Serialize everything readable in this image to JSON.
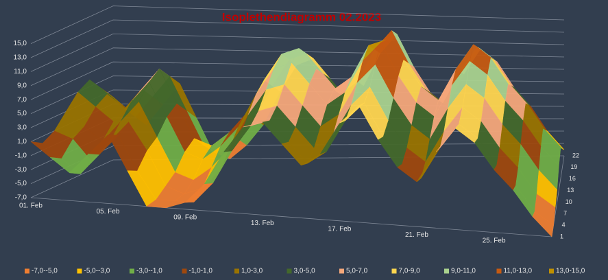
{
  "chart_data": {
    "type": "surface",
    "title": "Isoplethendiagramm 02.2023",
    "categories": [
      "01. Feb",
      null,
      null,
      null,
      "05. Feb",
      null,
      null,
      null,
      "09. Feb",
      null,
      null,
      null,
      "13. Feb",
      null,
      null,
      null,
      "17. Feb",
      null,
      null,
      null,
      "21. Feb",
      null,
      null,
      null,
      "25. Feb",
      null,
      null,
      null
    ],
    "ylim": [
      -7,
      15
    ],
    "yticks": [
      {
        "value": -7,
        "label": "-7,0"
      },
      {
        "value": -5,
        "label": "-5,0"
      },
      {
        "value": -3,
        "label": "-3,0"
      },
      {
        "value": -1,
        "label": "-1,0"
      },
      {
        "value": 1,
        "label": "1,0"
      },
      {
        "value": 3,
        "label": "3,0"
      },
      {
        "value": 5,
        "label": "5,0"
      },
      {
        "value": 7,
        "label": "7,0"
      },
      {
        "value": 9,
        "label": "9,0"
      },
      {
        "value": 11,
        "label": "11,0"
      },
      {
        "value": 13,
        "label": "13,0"
      },
      {
        "value": 15,
        "label": "15,0"
      }
    ],
    "series": [
      {
        "name": "1",
        "values": [
          1,
          -1,
          -3,
          0,
          3,
          -2,
          -7,
          -7,
          -6,
          -3,
          2,
          6,
          7,
          4,
          1,
          3,
          8,
          11,
          6,
          2,
          0,
          5,
          9,
          7,
          3,
          0,
          -4,
          -7
        ]
      },
      {
        "name": "4",
        "values": [
          0,
          -2,
          -4,
          -1,
          2,
          -3,
          -7,
          -7,
          -7,
          -4,
          1,
          5,
          6,
          3,
          0,
          2,
          7,
          10,
          5,
          1,
          -1,
          4,
          8,
          6,
          2,
          -1,
          -5,
          -7
        ]
      },
      {
        "name": "7",
        "values": [
          1,
          0,
          -3,
          0,
          3,
          -1,
          -6,
          -7,
          -6,
          -3,
          2,
          6,
          7,
          4,
          1,
          3,
          8,
          11,
          6,
          2,
          0,
          5,
          9,
          7,
          3,
          0,
          -4,
          -6
        ]
      },
      {
        "name": "10",
        "values": [
          3,
          1,
          -1,
          2,
          5,
          0,
          -5,
          -6,
          -4,
          -1,
          4,
          8,
          9,
          6,
          3,
          5,
          10,
          13,
          8,
          4,
          2,
          7,
          11,
          9,
          5,
          2,
          -2,
          -5
        ]
      },
      {
        "name": "13",
        "values": [
          5,
          3,
          1,
          4,
          7,
          2,
          -3,
          -4,
          -2,
          1,
          6,
          10,
          11,
          8,
          5,
          7,
          12,
          15,
          10,
          6,
          4,
          9,
          13,
          11,
          7,
          4,
          0,
          -3
        ]
      },
      {
        "name": "16",
        "values": [
          6,
          4,
          2,
          5,
          8,
          3,
          -2,
          -3,
          -1,
          2,
          7,
          11,
          12,
          9,
          6,
          8,
          13,
          14,
          11,
          7,
          5,
          10,
          14,
          12,
          8,
          5,
          1,
          -2
        ]
      },
      {
        "name": "19",
        "values": [
          4,
          2,
          0,
          3,
          6,
          1,
          -4,
          -5,
          -3,
          0,
          5,
          9,
          10,
          7,
          4,
          6,
          11,
          14,
          9,
          5,
          3,
          8,
          12,
          10,
          6,
          3,
          -1,
          -4
        ]
      },
      {
        "name": "22",
        "values": [
          2,
          0,
          -2,
          1,
          4,
          -1,
          -6,
          -7,
          -5,
          -2,
          3,
          7,
          8,
          5,
          2,
          4,
          9,
          12,
          7,
          3,
          1,
          6,
          10,
          8,
          4,
          1,
          -3,
          -6
        ]
      }
    ],
    "bands": [
      {
        "label": "-7,0--5,0",
        "from": -7,
        "to": -5,
        "color": "#ed7d31"
      },
      {
        "label": "-5,0--3,0",
        "from": -5,
        "to": -3,
        "color": "#ffc000"
      },
      {
        "label": "-3,0--1,0",
        "from": -3,
        "to": -1,
        "color": "#70ad47"
      },
      {
        "label": "-1,0-1,0",
        "from": -1,
        "to": 1,
        "color": "#9e480e"
      },
      {
        "label": "1,0-3,0",
        "from": 1,
        "to": 3,
        "color": "#997300"
      },
      {
        "label": "3,0-5,0",
        "from": 3,
        "to": 5,
        "color": "#43682b"
      },
      {
        "label": "5,0-7,0",
        "from": 5,
        "to": 7,
        "color": "#f4a77a"
      },
      {
        "label": "7,0-9,0",
        "from": 7,
        "to": 9,
        "color": "#ffd54f"
      },
      {
        "label": "9,0-11,0",
        "from": 9,
        "to": 11,
        "color": "#a9d18e"
      },
      {
        "label": "11,0-13,0",
        "from": 11,
        "to": 13,
        "color": "#c55a11"
      },
      {
        "label": "13,0-15,0",
        "from": 13,
        "to": 15,
        "color": "#bf9000"
      }
    ]
  }
}
